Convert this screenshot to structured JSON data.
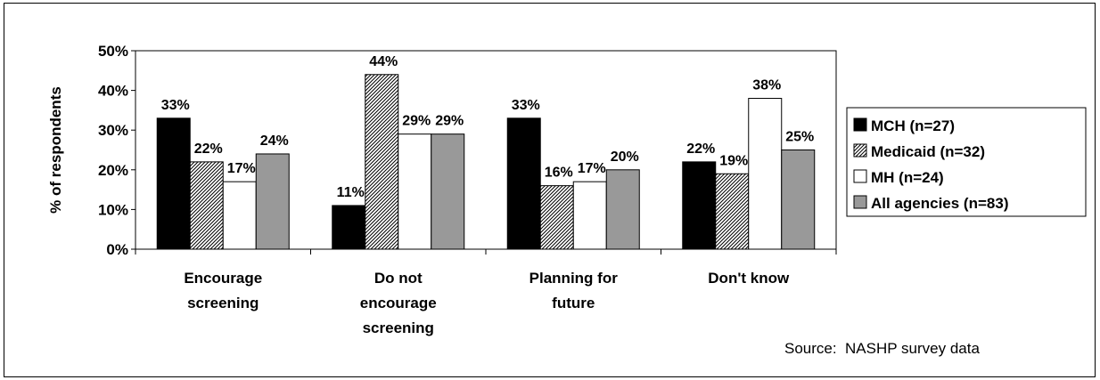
{
  "chart_data": {
    "type": "bar",
    "ylabel": "% of respondents",
    "ylim": [
      0,
      50
    ],
    "y_ticks": [
      "0%",
      "10%",
      "20%",
      "30%",
      "40%",
      "50%"
    ],
    "categories": [
      [
        "Encourage",
        "screening"
      ],
      [
        "Do not",
        "encourage",
        "screening"
      ],
      [
        "Planning for",
        "future"
      ],
      [
        "Don't know"
      ]
    ],
    "series": [
      {
        "name": "MCH (n=27)",
        "values": [
          33,
          11,
          33,
          22
        ],
        "labels": [
          "33%",
          "11%",
          "33%",
          "22%"
        ],
        "fill": "#000000",
        "pattern": "solid"
      },
      {
        "name": "Medicaid (n=32)",
        "values": [
          22,
          44,
          16,
          19
        ],
        "labels": [
          "22%",
          "44%",
          "16%",
          "19%"
        ],
        "fill": "#ffffff",
        "pattern": "hatch"
      },
      {
        "name": "MH (n=24)",
        "values": [
          17,
          29,
          17,
          38
        ],
        "labels": [
          "17%",
          "29%",
          "17%",
          "38%"
        ],
        "fill": "#ffffff",
        "pattern": "solid"
      },
      {
        "name": "All agencies (n=83)",
        "values": [
          24,
          29,
          20,
          25
        ],
        "labels": [
          "24%",
          "29%",
          "20%",
          "25%"
        ],
        "fill": "#999999",
        "pattern": "solid"
      }
    ],
    "grid": false,
    "legend_position": "right"
  },
  "source": "Source:  NASHP survey data"
}
